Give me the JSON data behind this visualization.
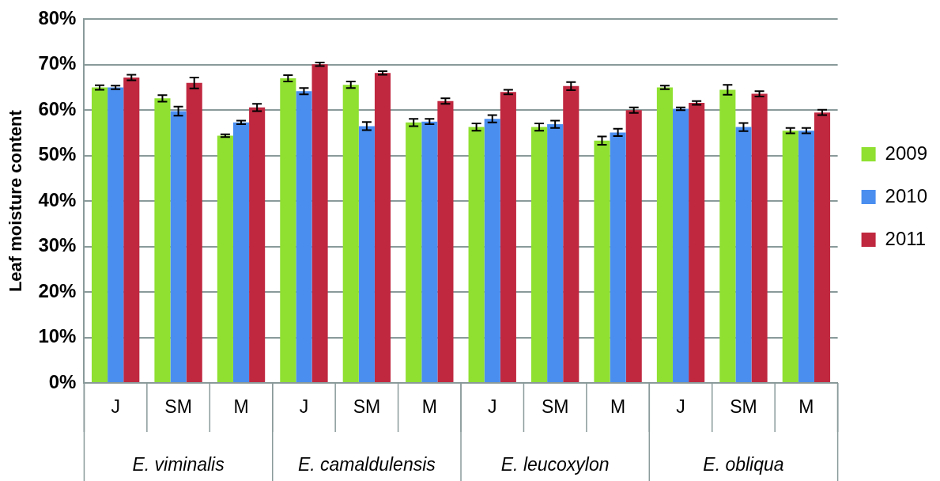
{
  "chart_data": {
    "type": "bar",
    "ylabel": "Leaf moisture content",
    "categories": [
      "J",
      "SM",
      "M",
      "J",
      "SM",
      "M",
      "J",
      "SM",
      "M",
      "J",
      "SM",
      "M"
    ],
    "annotations": [
      "E. viminalis",
      "E. camaldulensis",
      "E. leucoxylon",
      "E. obliqua"
    ],
    "series": [
      {
        "name": "2009",
        "color": "#8fe030",
        "values": [
          65,
          62.6,
          54.4,
          67,
          65.6,
          57.3,
          56.3,
          56.3,
          53.3,
          65,
          64.5,
          55.5
        ],
        "errors": [
          0.5,
          0.7,
          0.3,
          0.7,
          0.7,
          0.8,
          0.8,
          0.8,
          0.9,
          0.4,
          1.1,
          0.6
        ]
      },
      {
        "name": "2010",
        "color": "#4a8ef0",
        "values": [
          65,
          59.8,
          57.3,
          64.2,
          56.5,
          57.5,
          58.1,
          56.9,
          55.1,
          60.3,
          56.3,
          55.5
        ],
        "errors": [
          0.4,
          1,
          0.4,
          0.7,
          0.9,
          0.6,
          0.8,
          0.8,
          0.8,
          0.3,
          0.9,
          0.6
        ]
      },
      {
        "name": "2011",
        "color": "#c02840",
        "values": [
          67.2,
          66,
          60.6,
          70.1,
          68.2,
          62,
          64,
          65.3,
          60,
          61.6,
          63.6,
          59.5
        ],
        "errors": [
          0.6,
          1.2,
          0.8,
          0.4,
          0.4,
          0.6,
          0.5,
          0.9,
          0.6,
          0.4,
          0.6,
          0.6
        ]
      }
    ],
    "ylim": [
      0,
      80
    ],
    "yticks": [
      {
        "value": 0,
        "label": "0%"
      },
      {
        "value": 10,
        "label": "10%"
      },
      {
        "value": 20,
        "label": "20%"
      },
      {
        "value": 30,
        "label": "30%"
      },
      {
        "value": 40,
        "label": "40%"
      },
      {
        "value": 50,
        "label": "50%"
      },
      {
        "value": 60,
        "label": "60%"
      },
      {
        "value": 70,
        "label": "70%"
      },
      {
        "value": 80,
        "label": "80%"
      }
    ],
    "grid": "y",
    "legend": "right"
  }
}
